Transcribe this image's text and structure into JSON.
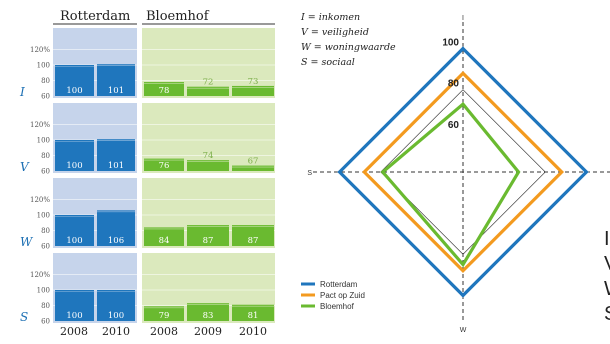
{
  "colors": {
    "rotterdam": "#1f76bd",
    "rotterdam_panel": "#c6d4eb",
    "bloemhof": "#6aba30",
    "bloemhof_panel": "#dbe9bd",
    "pact": "#f39a1f",
    "axis_letter": "#1c6fb3"
  },
  "chart_data": [
    {
      "type": "bar",
      "group_labels": [
        "Rotterdam",
        "Bloemhof"
      ],
      "x_labels": [
        "2008",
        "2010",
        "2008",
        "2009",
        "2010"
      ],
      "ytick_labels": [
        "60",
        "80",
        "100",
        "120%"
      ],
      "ylim": [
        60,
        130
      ],
      "panels": [
        {
          "letter": "I",
          "rotterdam": [
            100,
            101
          ],
          "bloemhof": [
            78,
            72,
            73
          ],
          "labels": [
            "100",
            "101",
            "78",
            "72",
            "73"
          ]
        },
        {
          "letter": "V",
          "rotterdam": [
            100,
            101
          ],
          "bloemhof": [
            76,
            74,
            67
          ],
          "labels": [
            "100",
            "101",
            "76",
            "74",
            "67"
          ]
        },
        {
          "letter": "W",
          "rotterdam": [
            100,
            106
          ],
          "bloemhof": [
            84,
            87,
            87
          ],
          "labels": [
            "100",
            "106",
            "84",
            "87",
            "87"
          ]
        },
        {
          "letter": "S",
          "rotterdam": [
            100,
            100
          ],
          "bloemhof": [
            79,
            83,
            81
          ],
          "labels": [
            "100",
            "100",
            "79",
            "83",
            "81"
          ]
        }
      ]
    },
    {
      "type": "radar",
      "axes": [
        "I",
        "V",
        "W",
        "S"
      ],
      "ring_labels": [
        "60",
        "80",
        "100"
      ],
      "range": [
        40,
        110
      ],
      "legend_definitions": [
        "I = inkomen",
        "V = veiligheid",
        "W = woningwaarde",
        "S = sociaal"
      ],
      "series": [
        {
          "name": "Rotterdam",
          "values": [
            100,
            100,
            100,
            100
          ]
        },
        {
          "name": "Pact op Zuid",
          "values": [
            88,
            88,
            88,
            88
          ]
        },
        {
          "name": "Bloemhof",
          "values": [
            73,
            67,
            85,
            79
          ]
        }
      ],
      "reference_values": [
        80
      ]
    }
  ],
  "cutoff_text": {
    "lines": [
      "I",
      "V",
      "W",
      "S"
    ]
  }
}
